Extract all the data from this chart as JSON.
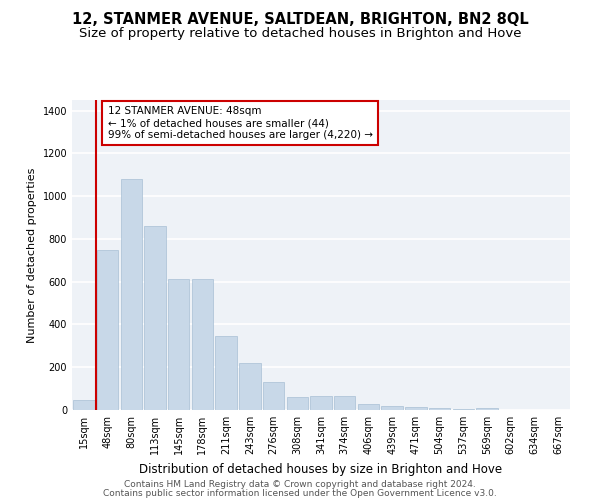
{
  "title": "12, STANMER AVENUE, SALTDEAN, BRIGHTON, BN2 8QL",
  "subtitle": "Size of property relative to detached houses in Brighton and Hove",
  "xlabel": "Distribution of detached houses by size in Brighton and Hove",
  "ylabel": "Number of detached properties",
  "categories": [
    "15sqm",
    "48sqm",
    "80sqm",
    "113sqm",
    "145sqm",
    "178sqm",
    "211sqm",
    "243sqm",
    "276sqm",
    "308sqm",
    "341sqm",
    "374sqm",
    "406sqm",
    "439sqm",
    "471sqm",
    "504sqm",
    "537sqm",
    "569sqm",
    "602sqm",
    "634sqm",
    "667sqm"
  ],
  "values": [
    45,
    750,
    1080,
    860,
    615,
    615,
    345,
    220,
    130,
    60,
    65,
    65,
    30,
    20,
    15,
    10,
    5,
    10,
    2,
    2,
    2
  ],
  "bar_color": "#c8d8e8",
  "bar_edge_color": "#a8c0d4",
  "highlight_index": 1,
  "highlight_line_color": "#cc0000",
  "annotation_text": "12 STANMER AVENUE: 48sqm\n← 1% of detached houses are smaller (44)\n99% of semi-detached houses are larger (4,220) →",
  "annotation_box_color": "#ffffff",
  "annotation_box_edge": "#cc0000",
  "ylim": [
    0,
    1450
  ],
  "yticks": [
    0,
    200,
    400,
    600,
    800,
    1000,
    1200,
    1400
  ],
  "background_color": "#eef2f7",
  "grid_color": "#ffffff",
  "footer1": "Contains HM Land Registry data © Crown copyright and database right 2024.",
  "footer2": "Contains public sector information licensed under the Open Government Licence v3.0.",
  "title_fontsize": 10.5,
  "subtitle_fontsize": 9.5,
  "xlabel_fontsize": 8.5,
  "ylabel_fontsize": 8,
  "tick_fontsize": 7,
  "annotation_fontsize": 7.5,
  "footer_fontsize": 6.5
}
